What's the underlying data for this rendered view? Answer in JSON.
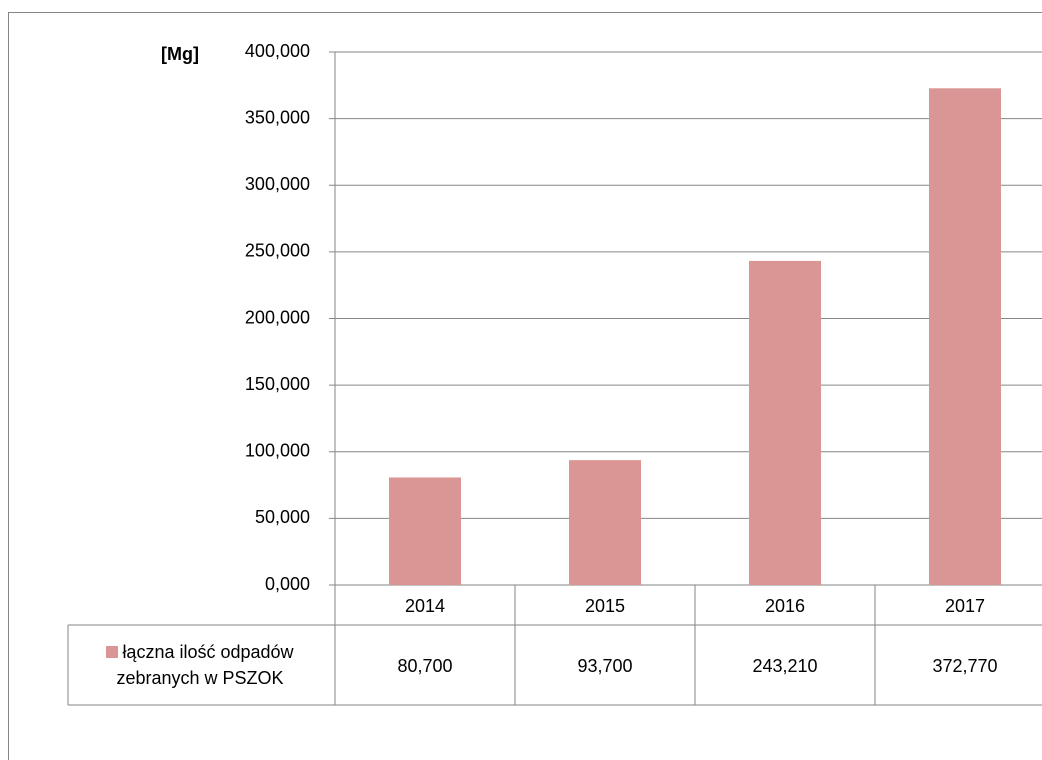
{
  "chart_data": {
    "type": "bar",
    "y_axis_label": "[Mg]",
    "categories": [
      "2014",
      "2015",
      "2016",
      "2017"
    ],
    "series": [
      {
        "name": "łączna ilość odpadów zebranych w PSZOK",
        "color": "#d99694",
        "values": [
          80.7,
          93.7,
          243.21,
          372.77
        ],
        "value_labels": [
          "80,700",
          "93,700",
          "243,210",
          "372,770"
        ]
      }
    ],
    "ylim": [
      0,
      400
    ],
    "yticks": [
      {
        "value": 0,
        "label": "0,000"
      },
      {
        "value": 50,
        "label": "50,000"
      },
      {
        "value": 100,
        "label": "100,000"
      },
      {
        "value": 150,
        "label": "150,000"
      },
      {
        "value": 200,
        "label": "200,000"
      },
      {
        "value": 250,
        "label": "250,000"
      },
      {
        "value": 300,
        "label": "300,000"
      },
      {
        "value": 350,
        "label": "350,000"
      },
      {
        "value": 400,
        "label": "400,000"
      }
    ],
    "grid": true,
    "data_table": true
  }
}
